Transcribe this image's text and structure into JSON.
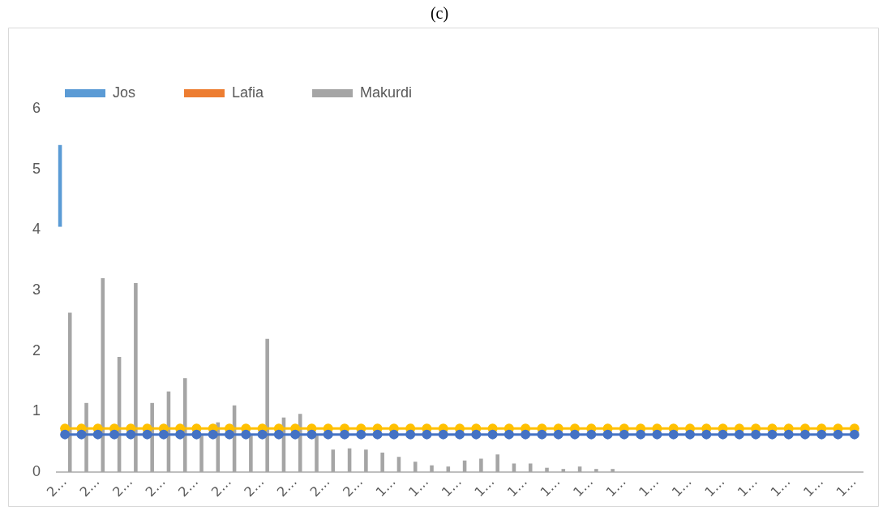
{
  "chart_data": {
    "type": "bar",
    "title": "(c)",
    "categories": [
      "2…",
      null,
      "2…",
      null,
      "2…",
      null,
      "2…",
      null,
      "2…",
      null,
      "2…",
      null,
      "2…",
      null,
      "2…",
      null,
      "2…",
      null,
      "2…",
      null,
      "1…",
      null,
      "1…",
      null,
      "1…",
      null,
      "1…",
      null,
      "1…",
      null,
      "1…",
      null,
      "1…",
      null,
      "1…",
      null,
      "1…",
      null,
      "1…",
      null,
      "1…",
      null,
      "1…",
      null,
      "1…",
      null,
      "1…",
      null,
      "1…"
    ],
    "series": [
      {
        "name": "Jos",
        "color": "#5b9bd5",
        "base": [
          4.05,
          null,
          null,
          null,
          null,
          null,
          null,
          null,
          null,
          null,
          null,
          null,
          null,
          null,
          null,
          null,
          null,
          null,
          null,
          null,
          null,
          null,
          null,
          null,
          null,
          null,
          null,
          null,
          null,
          null,
          null,
          null,
          null,
          null,
          null,
          null,
          null,
          null,
          null,
          null,
          null,
          null,
          null,
          null,
          null,
          null,
          null,
          null,
          null
        ],
        "values": [
          1.35,
          null,
          null,
          null,
          null,
          null,
          null,
          null,
          null,
          null,
          null,
          null,
          null,
          null,
          null,
          null,
          null,
          null,
          null,
          null,
          null,
          null,
          null,
          null,
          null,
          null,
          null,
          null,
          null,
          null,
          null,
          null,
          null,
          null,
          null,
          null,
          null,
          null,
          null,
          null,
          null,
          null,
          null,
          null,
          null,
          null,
          null,
          null,
          null
        ]
      },
      {
        "name": "Lafia",
        "color": "#ed7d31",
        "values": [
          null,
          null,
          null,
          null,
          null,
          null,
          null,
          null,
          null,
          null,
          null,
          null,
          null,
          null,
          null,
          null,
          null,
          null,
          null,
          null,
          null,
          null,
          null,
          null,
          null,
          null,
          null,
          null,
          null,
          null,
          null,
          null,
          null,
          null,
          null,
          null,
          null,
          null,
          null,
          null,
          null,
          null,
          null,
          null,
          null,
          null,
          null,
          null,
          null
        ]
      },
      {
        "name": "Makurdi",
        "color": "#a5a5a5",
        "values": [
          2.63,
          1.14,
          3.2,
          1.9,
          3.12,
          1.14,
          1.33,
          1.55,
          0.6,
          0.82,
          1.1,
          0.6,
          2.2,
          0.9,
          0.96,
          0.6,
          0.37,
          0.39,
          0.37,
          0.32,
          0.25,
          0.17,
          0.11,
          0.09,
          0.19,
          0.22,
          0.29,
          0.14,
          0.14,
          0.07,
          0.05,
          0.09,
          0.05,
          0.05,
          0,
          0,
          0,
          0,
          0,
          0,
          0,
          0,
          0,
          0,
          0,
          0,
          0,
          0,
          0
        ]
      },
      {
        "type": "line",
        "color": "#ffc000",
        "marker": "circle",
        "values": [
          0.72,
          0.72,
          0.72,
          0.72,
          0.72,
          0.72,
          0.72,
          0.72,
          0.72,
          0.72,
          0.72,
          0.72,
          0.72,
          0.72,
          0.72,
          0.72,
          0.72,
          0.72,
          0.72,
          0.72,
          0.72,
          0.72,
          0.72,
          0.72,
          0.72,
          0.72,
          0.72,
          0.72,
          0.72,
          0.72,
          0.72,
          0.72,
          0.72,
          0.72,
          0.72,
          0.72,
          0.72,
          0.72,
          0.72,
          0.72,
          0.72,
          0.72,
          0.72,
          0.72,
          0.72,
          0.72,
          0.72,
          0.72,
          0.72
        ]
      },
      {
        "type": "line",
        "color": "#4472c4",
        "marker": "circle",
        "values": [
          0.62,
          0.62,
          0.62,
          0.62,
          0.62,
          0.62,
          0.62,
          0.62,
          0.62,
          0.62,
          0.62,
          0.62,
          0.62,
          0.62,
          0.62,
          0.62,
          0.62,
          0.62,
          0.62,
          0.62,
          0.62,
          0.62,
          0.62,
          0.62,
          0.62,
          0.62,
          0.62,
          0.62,
          0.62,
          0.62,
          0.62,
          0.62,
          0.62,
          0.62,
          0.62,
          0.62,
          0.62,
          0.62,
          0.62,
          0.62,
          0.62,
          0.62,
          0.62,
          0.62,
          0.62,
          0.62,
          0.62,
          0.62,
          0.62
        ]
      }
    ],
    "ylim": [
      0,
      6
    ],
    "yticks": [
      0,
      1,
      2,
      3,
      4,
      5,
      6
    ],
    "grid": false,
    "legend": "top"
  }
}
